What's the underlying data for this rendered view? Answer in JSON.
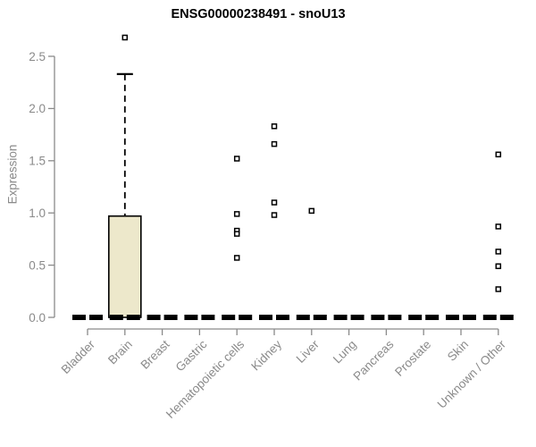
{
  "title": "ENSG00000238491 - snoU13",
  "colors": {
    "background": "#FFFFFF",
    "title_text": "#000000",
    "axis": "#8A8A8A",
    "tick_label": "#8A8A8A",
    "box_fill": "#EDE8CB",
    "box_border": "#000000",
    "median": "#000000",
    "whisker": "#000000",
    "outlier_stroke": "#000000",
    "outlier_fill": "#FFFFFF"
  },
  "chart_data": {
    "type": "boxplot",
    "title": "ENSG00000238491 - snoU13",
    "xlabel": "",
    "ylabel": "Expression",
    "ylim": [
      0,
      2.5
    ],
    "yticks": [
      0,
      0.5,
      1,
      1.5,
      2,
      2.5
    ],
    "ytick_labels": [
      "0.0",
      "0.5",
      "1.0",
      "1.5",
      "2.0",
      "2.5"
    ],
    "grid": false,
    "legend": null,
    "categories": [
      "Bladder",
      "Brain",
      "Breast",
      "Gastric",
      "Hematopoietic cells",
      "Kidney",
      "Liver",
      "Lung",
      "Pancreas",
      "Prostate",
      "Skin",
      "Unknown / Other"
    ],
    "boxes": [
      {
        "category": "Bladder",
        "q1": 0,
        "median": 0,
        "q3": 0,
        "whisker_low": 0,
        "whisker_high": 0,
        "outliers": []
      },
      {
        "category": "Brain",
        "q1": 0,
        "median": 0,
        "q3": 0.97,
        "whisker_low": 0,
        "whisker_high": 2.33,
        "outliers": [
          2.68
        ]
      },
      {
        "category": "Breast",
        "q1": 0,
        "median": 0,
        "q3": 0,
        "whisker_low": 0,
        "whisker_high": 0,
        "outliers": []
      },
      {
        "category": "Gastric",
        "q1": 0,
        "median": 0,
        "q3": 0,
        "whisker_low": 0,
        "whisker_high": 0,
        "outliers": []
      },
      {
        "category": "Hematopoietic cells",
        "q1": 0,
        "median": 0,
        "q3": 0,
        "whisker_low": 0,
        "whisker_high": 0,
        "outliers": [
          1.52,
          0.99,
          0.83,
          0.8,
          0.57
        ]
      },
      {
        "category": "Kidney",
        "q1": 0,
        "median": 0,
        "q3": 0,
        "whisker_low": 0,
        "whisker_high": 0,
        "outliers": [
          1.83,
          1.66,
          1.1,
          0.98
        ]
      },
      {
        "category": "Liver",
        "q1": 0,
        "median": 0,
        "q3": 0,
        "whisker_low": 0,
        "whisker_high": 0,
        "outliers": [
          1.02
        ]
      },
      {
        "category": "Lung",
        "q1": 0,
        "median": 0,
        "q3": 0,
        "whisker_low": 0,
        "whisker_high": 0,
        "outliers": []
      },
      {
        "category": "Pancreas",
        "q1": 0,
        "median": 0,
        "q3": 0,
        "whisker_low": 0,
        "whisker_high": 0,
        "outliers": []
      },
      {
        "category": "Prostate",
        "q1": 0,
        "median": 0,
        "q3": 0,
        "whisker_low": 0,
        "whisker_high": 0,
        "outliers": []
      },
      {
        "category": "Skin",
        "q1": 0,
        "median": 0,
        "q3": 0,
        "whisker_low": 0,
        "whisker_high": 0,
        "outliers": []
      },
      {
        "category": "Unknown / Other",
        "q1": 0,
        "median": 0,
        "q3": 0,
        "whisker_low": 0,
        "whisker_high": 0,
        "outliers": [
          1.56,
          0.87,
          0.63,
          0.49,
          0.27
        ]
      }
    ]
  }
}
